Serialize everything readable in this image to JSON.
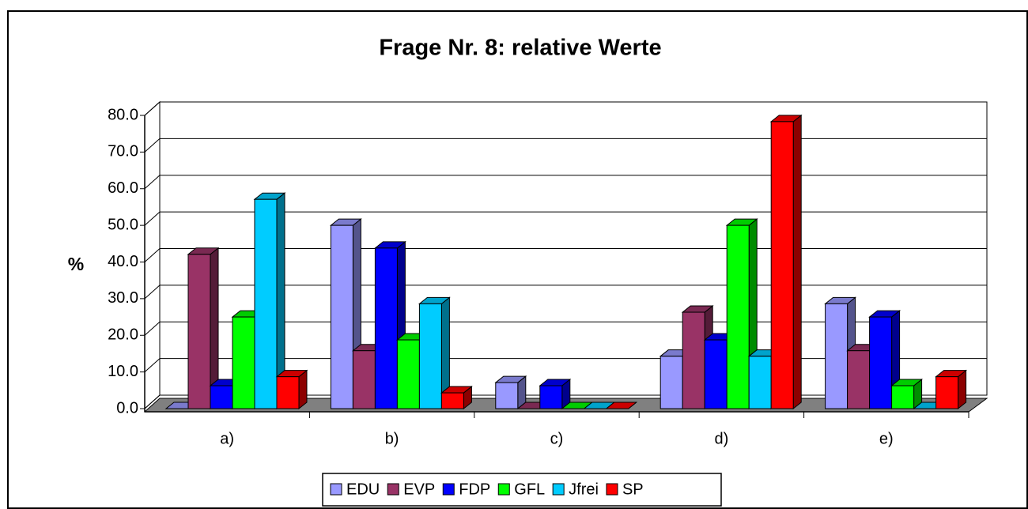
{
  "chart_data": {
    "type": "bar3d",
    "title": "Frage Nr. 8: relative Werte",
    "y_label": "%",
    "categories": [
      "a)",
      "b)",
      "c)",
      "d)",
      "e)"
    ],
    "series": [
      {
        "name": "EDU",
        "color": "#9999ff",
        "values": [
          0,
          50,
          7.1,
          14.3,
          28.6
        ]
      },
      {
        "name": "EVP",
        "color": "#993366",
        "values": [
          42.1,
          15.8,
          0,
          26.3,
          15.8
        ]
      },
      {
        "name": "FDP",
        "color": "#0000ff",
        "values": [
          6.25,
          43.8,
          6.25,
          18.75,
          25
        ]
      },
      {
        "name": "GFL",
        "color": "#00ff00",
        "values": [
          25,
          18.75,
          0,
          50,
          6.25
        ]
      },
      {
        "name": "Jfrei",
        "color": "#00ccff",
        "values": [
          57.1,
          28.6,
          0,
          14.3,
          0
        ]
      },
      {
        "name": "SP",
        "color": "#ff0000",
        "values": [
          8.7,
          4.3,
          0,
          78.3,
          8.7
        ]
      }
    ],
    "ylim": [
      0,
      80
    ],
    "yticks": [
      {
        "value": 0,
        "label": "0.0"
      },
      {
        "value": 10,
        "label": "10.0"
      },
      {
        "value": 20,
        "label": "20.0"
      },
      {
        "value": 30,
        "label": "30.0"
      },
      {
        "value": 40,
        "label": "40.0"
      },
      {
        "value": 50,
        "label": "50.0"
      },
      {
        "value": 60,
        "label": "60.0"
      },
      {
        "value": 70,
        "label": "70.0"
      },
      {
        "value": 80,
        "label": "80.0"
      }
    ],
    "grid": true,
    "legend": "bottom"
  }
}
